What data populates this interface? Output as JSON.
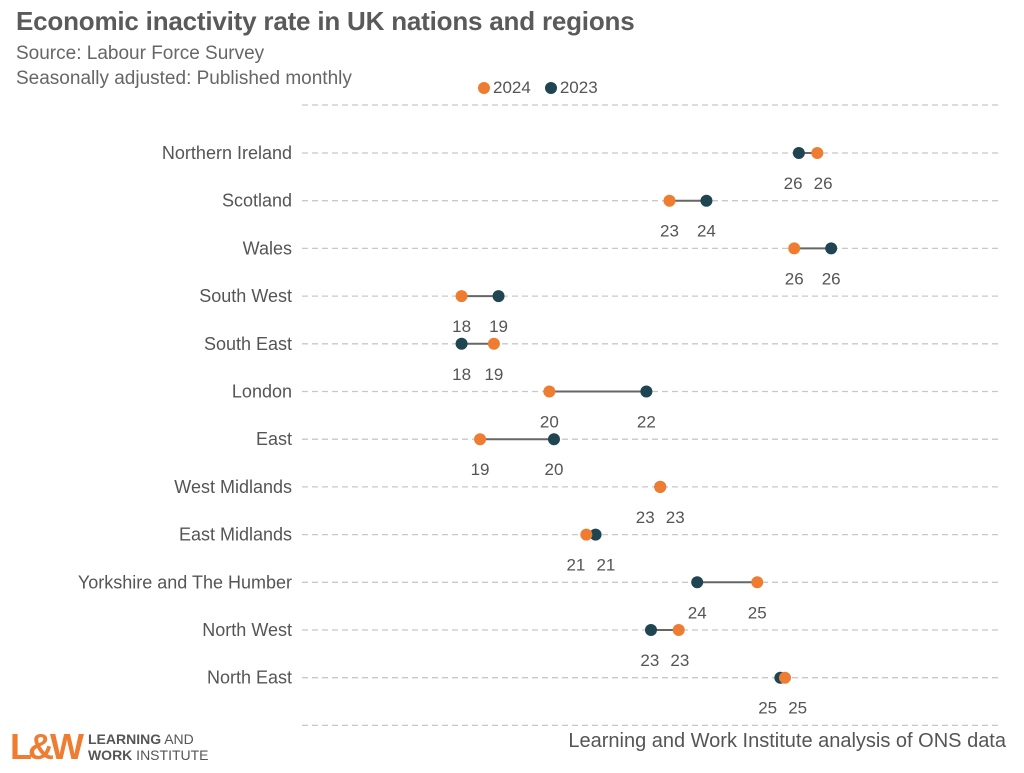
{
  "header": {
    "title": "Economic inactivity rate in UK nations and regions",
    "subtitle": "Source: Labour Force Survey",
    "note": "Seasonally adjusted: Published monthly"
  },
  "legend": [
    {
      "name": "2024",
      "color": "#ef7d31"
    },
    {
      "name": "2023",
      "color": "#1f4553"
    }
  ],
  "footer": {
    "logo_mark": "L&W",
    "logo_line1_bold": "LEARNING",
    "logo_line1_rest": " AND",
    "logo_line2_bold": "WORK",
    "logo_line2_rest": " INSTITUTE",
    "source": "Learning and Work Institute analysis of ONS data"
  },
  "chart_data": {
    "type": "scatter",
    "subtype": "dumbbell",
    "title": "Economic inactivity rate in UK nations and regions",
    "xlabel": "",
    "ylabel": "",
    "unit": "%",
    "grid": true,
    "legend_position": "top",
    "categories": [
      "Northern Ireland",
      "Scotland",
      "Wales",
      "South West",
      "South East",
      "London",
      "East",
      "West Midlands",
      "East Midlands",
      "Yorkshire and The Humber",
      "North West",
      "North East"
    ],
    "series": [
      {
        "name": "2024",
        "color": "#ef7d31",
        "values": [
          26.1,
          22.9,
          25.6,
          18.4,
          19.1,
          20.3,
          18.8,
          22.7,
          21.1,
          24.8,
          23.1,
          25.4
        ]
      },
      {
        "name": "2023",
        "color": "#1f4553",
        "values": [
          25.7,
          23.7,
          26.4,
          19.2,
          18.4,
          22.4,
          20.4,
          22.7,
          21.3,
          23.5,
          22.5,
          25.3
        ]
      }
    ],
    "value_labels": {
      "2024": [
        "26",
        "23",
        "26",
        "18",
        "19",
        "20",
        "19",
        "23",
        "21",
        "25",
        "23",
        "25"
      ],
      "2023": [
        "26",
        "24",
        "26",
        "19",
        "18",
        "22",
        "20",
        "23",
        "21",
        "24",
        "23",
        "25"
      ]
    }
  }
}
